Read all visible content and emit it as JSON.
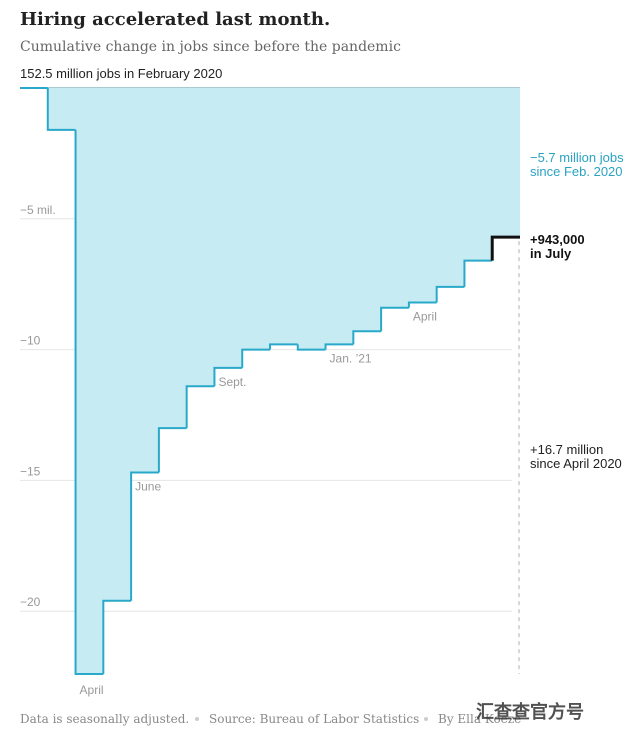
{
  "title": "Hiring accelerated last month.",
  "subtitle": "Cumulative change in jobs since before the pandemic",
  "baseline_label": "152.5 million jobs in February 2020",
  "annotations": {
    "total_line1": "−5.7 million jobs",
    "total_line2": "since Feb. 2020",
    "july_line1": "+943,000",
    "july_line2": "in July",
    "recovery_line1": "+16.7 million",
    "recovery_line2": "since April 2020"
  },
  "footer": {
    "note": "Data is seasonally adjusted.",
    "source": "Source: Bureau of Labor Statistics",
    "byline": "By Ella Koeze"
  },
  "watermark": "汇查查官方号",
  "colors": {
    "fill": "#c7ebf3",
    "line": "#29a9c9",
    "accent_text": "#2aa3c3",
    "grid": "#e6e6e6",
    "axis_text": "#999999",
    "title_text": "#222222",
    "last_step": "#111111"
  },
  "chart_data": {
    "type": "area",
    "step": true,
    "title": "Hiring accelerated last month.",
    "subtitle": "Cumulative change in jobs since before the pandemic",
    "ylabel": "",
    "ylim": [
      -22.5,
      0
    ],
    "y_ticks": [
      {
        "value": -5,
        "label": "−5 mil."
      },
      {
        "value": -10,
        "label": "−10"
      },
      {
        "value": -15,
        "label": "−15"
      },
      {
        "value": -20,
        "label": "−20"
      }
    ],
    "x": [
      "Feb 2020",
      "Mar 2020",
      "Apr 2020",
      "May 2020",
      "Jun 2020",
      "Jul 2020",
      "Aug 2020",
      "Sep 2020",
      "Oct 2020",
      "Nov 2020",
      "Dec 2020",
      "Jan 2021",
      "Feb 2021",
      "Mar 2021",
      "Apr 2021",
      "May 2021",
      "Jun 2021",
      "Jul 2021"
    ],
    "values": [
      0,
      -1.6,
      -22.4,
      -19.6,
      -14.7,
      -13.0,
      -11.4,
      -10.7,
      -10.0,
      -9.8,
      -10.0,
      -9.8,
      -9.3,
      -8.4,
      -8.2,
      -7.6,
      -6.6,
      -5.7
    ],
    "x_labels": [
      {
        "index": 2,
        "label": "April",
        "placement": "below"
      },
      {
        "index": 4,
        "label": "June",
        "placement": "below"
      },
      {
        "index": 7,
        "label": "Sept.",
        "placement": "below"
      },
      {
        "index": 11,
        "label": "Jan. ’21",
        "placement": "below"
      },
      {
        "index": 14,
        "label": "April",
        "placement": "below"
      }
    ],
    "grid": true
  }
}
